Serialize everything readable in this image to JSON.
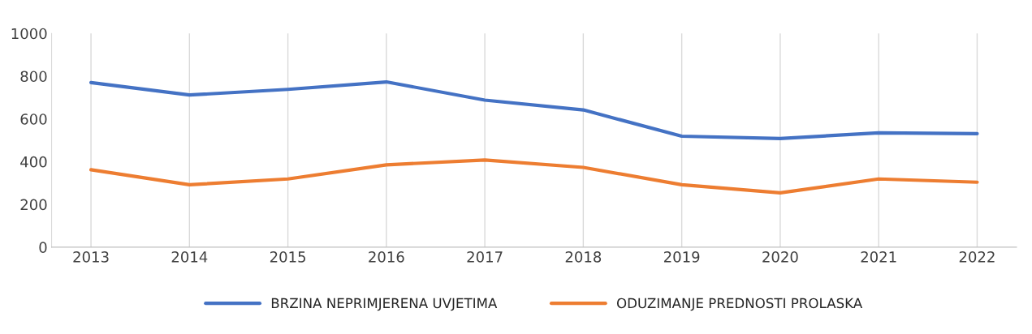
{
  "chart_data": {
    "type": "line",
    "categories": [
      "2013",
      "2014",
      "2015",
      "2016",
      "2017",
      "2018",
      "2019",
      "2020",
      "2021",
      "2022"
    ],
    "series": [
      {
        "name": "BRZINA NEPRIMJERENA UVJETIMA",
        "color": "#4472c4",
        "values": [
          770,
          712,
          738,
          773,
          688,
          642,
          519,
          508,
          535,
          531
        ]
      },
      {
        "name": "ODUZIMANJE PREDNOSTI PROLASKA",
        "color": "#ed7d31",
        "values": [
          362,
          292,
          319,
          385,
          408,
          373,
          292,
          254,
          319,
          304
        ]
      }
    ],
    "ylim": [
      0,
      1000
    ],
    "yticks": [
      0,
      200,
      400,
      600,
      800,
      1000
    ],
    "grid": "x",
    "legend": "bottom",
    "marker": "none",
    "line_style": "solid"
  }
}
